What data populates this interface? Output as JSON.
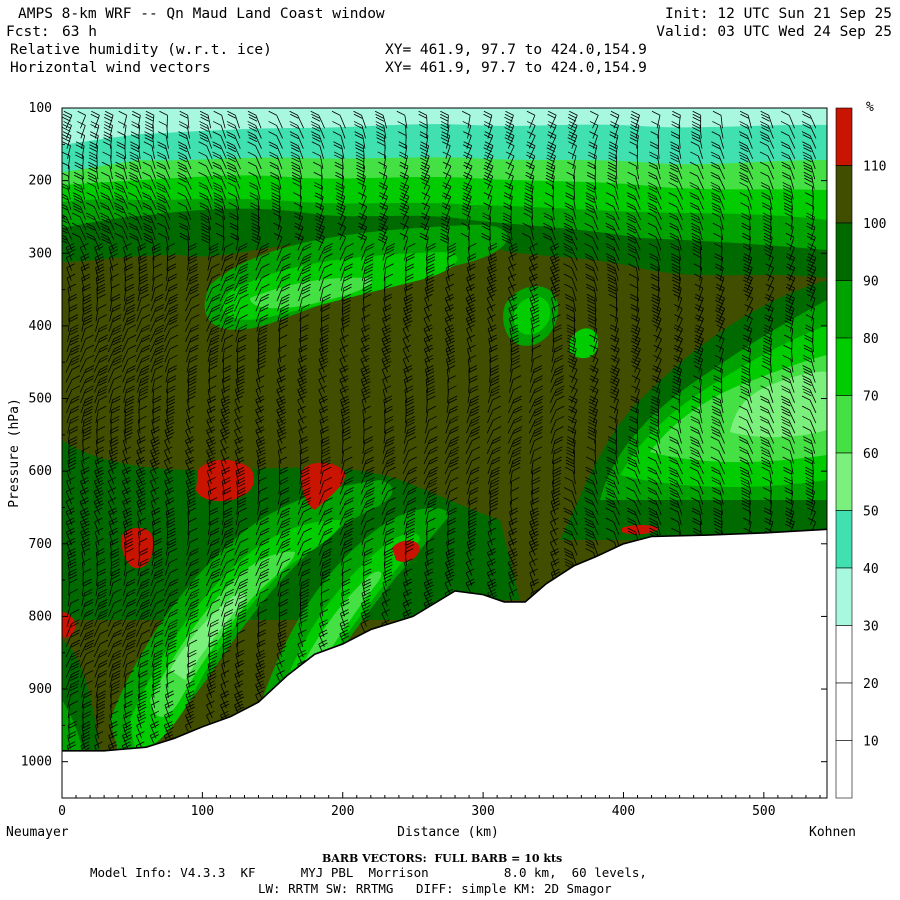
{
  "header": {
    "title_left": "AMPS 8-km WRF -- Qn Maud Land Coast window",
    "fcst_label": "Fcst:",
    "fcst_value": "63 h",
    "field1": "Relative humidity (w.r.t. ice)",
    "field2": "Horizontal wind vectors",
    "xy1": "XY= 461.9, 97.7 to 424.0,154.9",
    "xy2": "XY= 461.9, 97.7 to 424.0,154.9",
    "init": "Init: 12 UTC Sun 21 Sep 25",
    "valid": "Valid: 03 UTC Wed 24 Sep 25"
  },
  "footer": {
    "barb_note": "BARB VECTORS:  FULL BARB = 10 kts",
    "model_line1": "Model Info: V4.3.3  KF      MYJ PBL  Morrison          8.0 km,  60 levels,",
    "model_line2": "LW: RRTM SW: RRTMG   DIFF: simple KM: 2D Smagor"
  },
  "endpoints": {
    "left": "Neumayer",
    "right": "Kohnen"
  },
  "colors": {
    "brown": "#414e00",
    "dark_green": "#006a00",
    "green90": "#00a200",
    "green80": "#00cc00",
    "green70": "#44e044",
    "light_green": "#7cf07c",
    "aqua50": "#40e0b0",
    "pale_aqua": "#a8f8e0",
    "red": "#c81400",
    "white": "#ffffff"
  },
  "chart_data": {
    "type": "heatmap",
    "title": "Relative humidity (w.r.t. ice)",
    "xlabel": "Distance (km)",
    "ylabel": "Pressure (hPa)",
    "xlim": [
      0,
      545
    ],
    "ylim": [
      1050,
      100
    ],
    "x_ticks": [
      0,
      100,
      200,
      300,
      400,
      500
    ],
    "y_ticks": [
      100,
      200,
      300,
      400,
      500,
      600,
      700,
      800,
      900,
      1000
    ],
    "colorbar": {
      "unit": "%",
      "levels": [
        10,
        20,
        30,
        40,
        50,
        60,
        70,
        80,
        90,
        100,
        110
      ],
      "colors": [
        "#ffffff",
        "#ffffff",
        "#ffffff",
        "#a8f8e0",
        "#40e0b0",
        "#7cf07c",
        "#44e044",
        "#00cc00",
        "#00a200",
        "#006a00",
        "#414e00",
        "#c81400"
      ]
    },
    "terrain_surface": [
      {
        "x": 0,
        "p": 985
      },
      {
        "x": 30,
        "p": 985
      },
      {
        "x": 60,
        "p": 980
      },
      {
        "x": 80,
        "p": 968
      },
      {
        "x": 100,
        "p": 952
      },
      {
        "x": 120,
        "p": 938
      },
      {
        "x": 140,
        "p": 918
      },
      {
        "x": 160,
        "p": 882
      },
      {
        "x": 180,
        "p": 852
      },
      {
        "x": 200,
        "p": 838
      },
      {
        "x": 220,
        "p": 818
      },
      {
        "x": 250,
        "p": 800
      },
      {
        "x": 280,
        "p": 765
      },
      {
        "x": 300,
        "p": 770
      },
      {
        "x": 315,
        "p": 780
      },
      {
        "x": 330,
        "p": 780
      },
      {
        "x": 345,
        "p": 755
      },
      {
        "x": 365,
        "p": 730
      },
      {
        "x": 380,
        "p": 718
      },
      {
        "x": 400,
        "p": 700
      },
      {
        "x": 420,
        "p": 690
      },
      {
        "x": 460,
        "p": 688
      },
      {
        "x": 500,
        "p": 685
      },
      {
        "x": 545,
        "p": 680
      }
    ],
    "barb_columns_km": [
      5,
      15,
      25,
      35,
      45,
      55,
      65,
      75,
      90,
      105,
      115,
      125,
      140,
      155,
      170,
      185,
      200,
      215,
      230,
      245,
      260,
      275,
      290,
      305,
      320,
      335,
      350,
      365,
      380,
      395,
      410,
      425,
      440,
      455,
      470,
      490,
      505,
      520,
      535
    ],
    "barb_note": "FULL BARB = 10 kts"
  }
}
